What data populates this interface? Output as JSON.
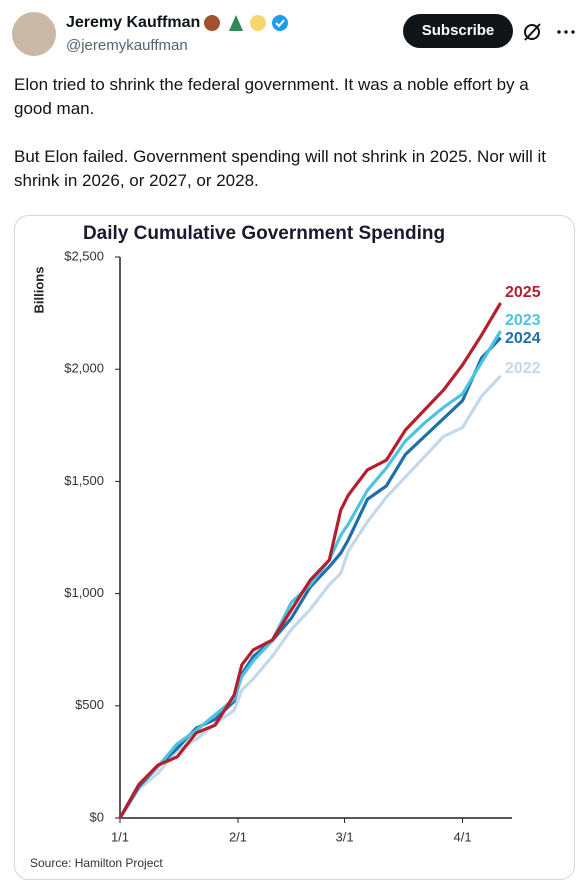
{
  "tweet": {
    "name": "Jeremy Kauffman",
    "handle": "@jeremykauffman",
    "button": "Subscribe",
    "paragraphs": [
      "Elon tried to shrink the federal government. It was a noble effort by a good man.",
      "But Elon failed. Government spending will not shrink in 2025. Nor will it shrink in 2026, or 2027, or 2028."
    ]
  },
  "chart_data": {
    "type": "line",
    "title": "Daily Cumulative Government Spending",
    "y_label": "Billions",
    "source": "Source: Hamilton Project",
    "x": [
      0,
      5,
      10,
      15,
      20,
      25,
      30,
      32,
      35,
      40,
      45,
      50,
      55,
      58,
      60,
      65,
      70,
      75,
      80,
      85,
      90,
      95,
      100
    ],
    "xlim": [
      0,
      103
    ],
    "xticks": [
      {
        "value": 0,
        "label": "1/1"
      },
      {
        "value": 31,
        "label": "2/1"
      },
      {
        "value": 59,
        "label": "3/1"
      },
      {
        "value": 90,
        "label": "4/1"
      }
    ],
    "ylim": [
      0,
      2500
    ],
    "yticks": [
      {
        "value": 0,
        "label": "$0"
      },
      {
        "value": 500,
        "label": "$500"
      },
      {
        "value": 1000,
        "label": "$1,000"
      },
      {
        "value": 1500,
        "label": "$1,500"
      },
      {
        "value": 2000,
        "label": "$2,000"
      },
      {
        "value": 2500,
        "label": "$2,500"
      }
    ],
    "series": [
      {
        "name": "2025",
        "color": "#b31f2d",
        "values": [
          0,
          150,
          236,
          272,
          379,
          414,
          548,
          682,
          749,
          793,
          927,
          1060,
          1150,
          1372,
          1439,
          1551,
          1595,
          1729,
          1818,
          1907,
          2019,
          2152,
          2295
        ]
      },
      {
        "name": "2023",
        "color": "#4ec3e0",
        "values": [
          0,
          150,
          230,
          330,
          390,
          460,
          530,
          630,
          700,
          790,
          960,
          1040,
          1150,
          1260,
          1310,
          1460,
          1560,
          1680,
          1760,
          1830,
          1890,
          2030,
          2170
        ]
      },
      {
        "name": "2024",
        "color": "#1f6fa8",
        "values": [
          0,
          140,
          230,
          310,
          400,
          440,
          520,
          640,
          720,
          790,
          890,
          1030,
          1120,
          1180,
          1240,
          1420,
          1480,
          1620,
          1700,
          1780,
          1860,
          2050,
          2140
        ]
      },
      {
        "name": "2022",
        "color": "#c4d8ec",
        "values": [
          0,
          130,
          200,
          300,
          350,
          420,
          480,
          570,
          620,
          720,
          840,
          930,
          1040,
          1090,
          1190,
          1320,
          1430,
          1520,
          1610,
          1700,
          1740,
          1880,
          1970
        ]
      }
    ]
  }
}
